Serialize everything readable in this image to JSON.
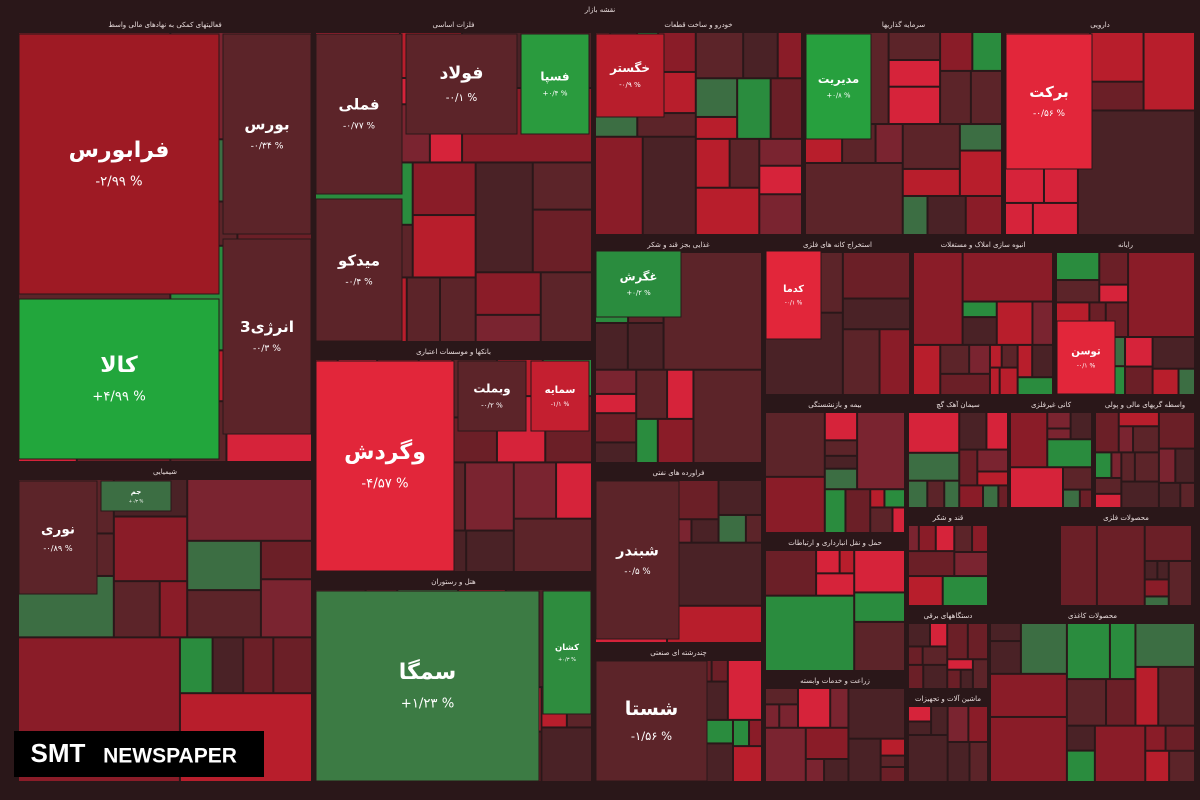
{
  "header": {
    "title": "نقشه بازار"
  },
  "watermark": {
    "brand": "SMT",
    "rest": "NEWSPAPER"
  },
  "sectors": [
    {
      "title": "فعالیتهای کمکی به نهادهای مالی واسط",
      "tiles": [
        {
          "symbol": "فرابورس",
          "change": "-۲/۹۹ %",
          "color": "#9e1a24"
        },
        {
          "symbol": "کالا",
          "change": "+۴/۹۹ %",
          "color": "#22a63c"
        },
        {
          "symbol": "بورس",
          "change": "-۰/۳۴ %",
          "color": "#5c2429"
        },
        {
          "symbol": "انرژی3",
          "change": "-۰/۳ %",
          "color": "#5c2429"
        }
      ]
    },
    {
      "title": "فلزات اساسی",
      "tiles": [
        {
          "symbol": "فملی",
          "change": "-۰/۷۷ %",
          "color": "#5c2429"
        },
        {
          "symbol": "میدکو",
          "change": "-۰/۴ %",
          "color": "#5c2429"
        },
        {
          "symbol": "فولاد",
          "change": "-۰/۱ %",
          "color": "#5c2429"
        },
        {
          "symbol": "فسپا",
          "change": "+۰/۴ %",
          "color": "#2a9b3e"
        }
      ]
    },
    {
      "title": "بانکها و موسسات اعتباری",
      "tiles": [
        {
          "symbol": "وگردش",
          "change": "-۴/۵۷ %",
          "color": "#e2263a"
        },
        {
          "symbol": "وبملت",
          "change": "-۰/۲ %",
          "color": "#5c2429"
        },
        {
          "symbol": "سمایه",
          "change": "-۱/۱ %",
          "color": "#c41f30"
        }
      ]
    },
    {
      "title": "هتل و رستوران",
      "tiles": [
        {
          "symbol": "سمگا",
          "change": "+۱/۲۳ %",
          "color": "#3c7b44"
        },
        {
          "symbol": "کشان",
          "change": "+۰/۳ %",
          "color": "#2e8c3e"
        }
      ]
    },
    {
      "title": "خودرو و ساخت قطعات",
      "tiles": [
        {
          "symbol": "خگستر",
          "change": "-۰/۹ %",
          "color": "#b81e2c"
        }
      ]
    },
    {
      "title": "سرمایه گذاریها",
      "tiles": [
        {
          "symbol": "مدیریت",
          "change": "+۰/۸ %",
          "color": "#27a03e"
        }
      ]
    },
    {
      "title": "دارویی",
      "tiles": [
        {
          "symbol": "برکت",
          "change": "-۰/۵۶ %",
          "color": "#e2263a"
        }
      ]
    },
    {
      "title": "غذایی بجز قند و شکر",
      "tiles": [
        {
          "symbol": "غگرش",
          "change": "+۰/۲ %",
          "color": "#2a8c3e"
        }
      ]
    },
    {
      "title": "استخراج کانه های فلزی",
      "tiles": [
        {
          "symbol": "کدما",
          "change": "-۰/۱ %",
          "color": "#e2263a"
        }
      ]
    },
    {
      "title": "انبوه سازی املاک و مستغلات",
      "tiles": []
    },
    {
      "title": "رایانه",
      "tiles": [
        {
          "symbol": "توسن",
          "change": "-۰/۱ %",
          "color": "#e2263a"
        }
      ]
    },
    {
      "title": "شیمیایی",
      "tiles": [
        {
          "symbol": "نوری",
          "change": "-۰/۸۹ %",
          "color": "#5c2429"
        },
        {
          "symbol": "جم",
          "change": "+۰/۳ %",
          "color": "#3c6e43"
        }
      ]
    },
    {
      "title": "فراورده های نفتی",
      "tiles": [
        {
          "symbol": "شبندر",
          "change": "-۰/۵ %",
          "color": "#5c2429"
        }
      ]
    },
    {
      "title": "چندرشته ای صنعتی",
      "tiles": [
        {
          "symbol": "شستا",
          "change": "-۱/۵۶ %",
          "color": "#5c2429"
        }
      ]
    },
    {
      "title": "بیمه و بازنشستگی",
      "tiles": []
    },
    {
      "title": "سیمان آهک گچ",
      "tiles": []
    },
    {
      "title": "کانی غیرفلزی",
      "tiles": []
    },
    {
      "title": "واسطه گریهای مالی و پولی",
      "tiles": []
    },
    {
      "title": "حمل و نقل انبارداری و ارتباطات",
      "tiles": []
    },
    {
      "title": "زراعت و خدمات وابسته",
      "tiles": []
    },
    {
      "title": "قند و شکر",
      "tiles": []
    },
    {
      "title": "محصولات فلزی",
      "tiles": []
    },
    {
      "title": "دستگاههای برقی",
      "tiles": []
    },
    {
      "title": "ماشین آلات و تجهیزات",
      "tiles": []
    },
    {
      "title": "محصولات کاغذی",
      "tiles": []
    }
  ]
}
